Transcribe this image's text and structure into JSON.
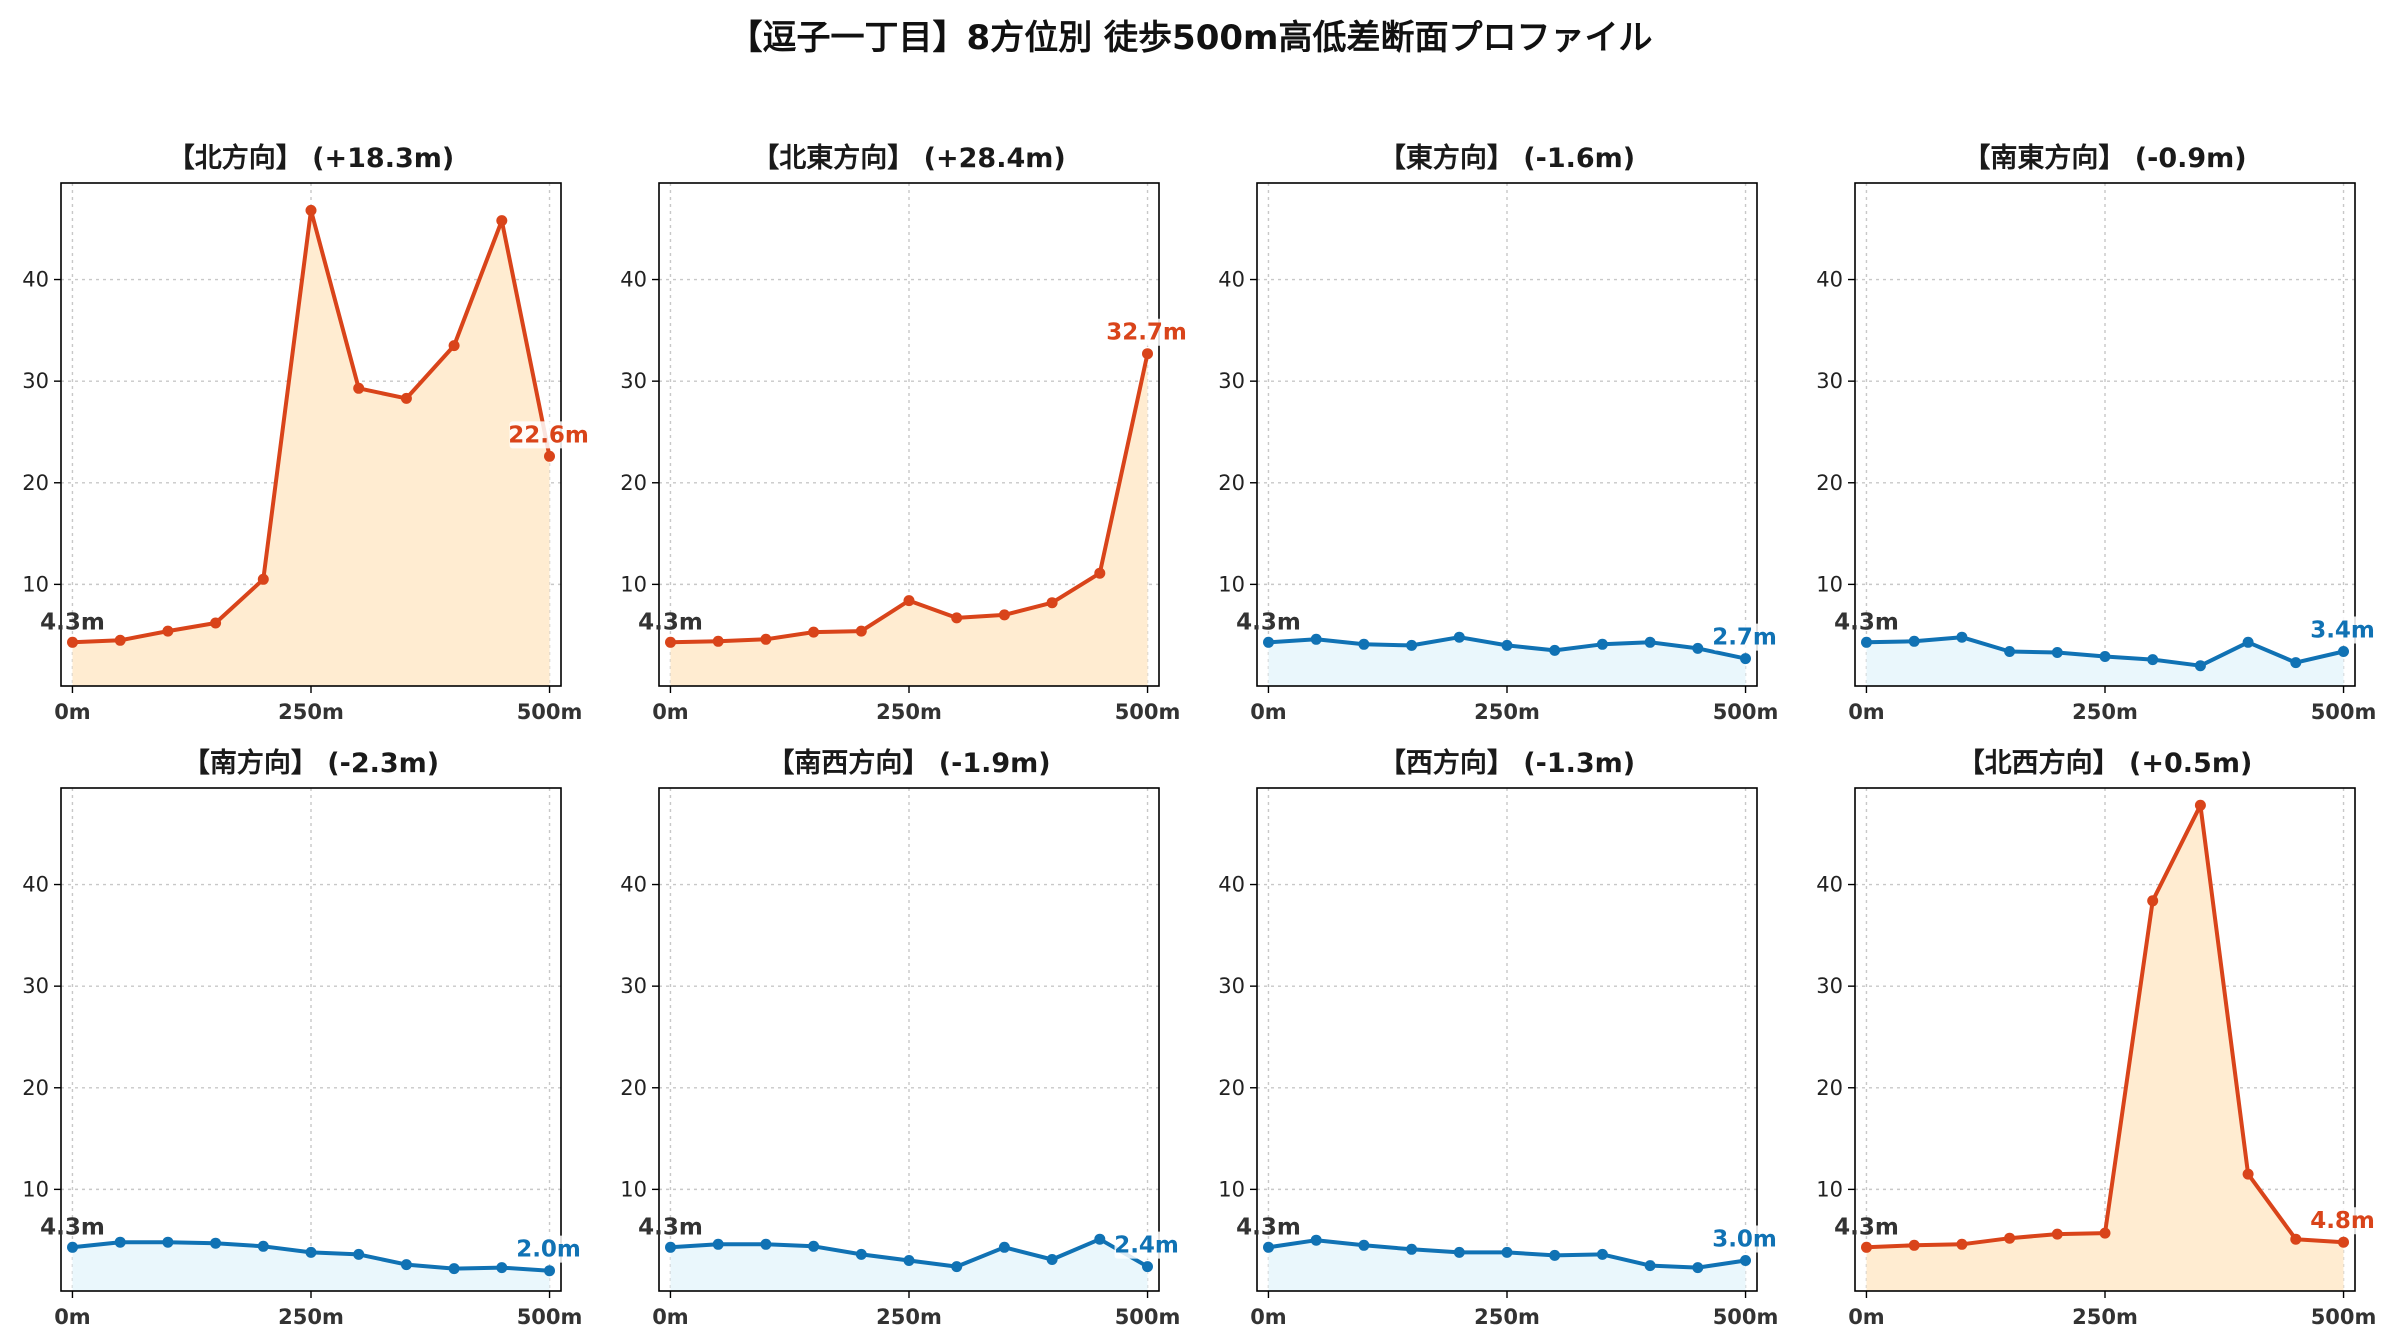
{
  "title": "【逗子一丁目】8方位別 徒歩500m高低差断面プロファイル",
  "colors": {
    "up_line": "#d9441a",
    "up_fill": "#ffecd1",
    "down_line": "#1072b4",
    "down_fill": "#eaf7fc"
  },
  "chart_data": [
    {
      "type": "area",
      "title": "【北方向】 (+18.3m)",
      "trend": "up",
      "x": [
        0,
        50,
        100,
        150,
        200,
        250,
        300,
        350,
        400,
        450,
        500
      ],
      "series": [
        {
          "values": [
            4.3,
            4.5,
            5.4,
            6.2,
            10.5,
            46.8,
            29.3,
            28.3,
            33.5,
            45.8,
            22.6
          ]
        }
      ],
      "xticks": [
        "0m",
        "250m",
        "500m"
      ],
      "yticks": [
        "10",
        "20",
        "30",
        "40"
      ],
      "ylim": [
        0,
        49.5
      ],
      "xlim": [
        -12,
        512
      ],
      "grid": true,
      "annotations": {
        "start": "4.3m",
        "end": "22.6m"
      }
    },
    {
      "type": "area",
      "title": "【北東方向】 (+28.4m)",
      "trend": "up",
      "x": [
        0,
        50,
        100,
        150,
        200,
        250,
        300,
        350,
        400,
        450,
        500
      ],
      "series": [
        {
          "values": [
            4.3,
            4.4,
            4.6,
            5.3,
            5.4,
            8.4,
            6.7,
            7.0,
            8.2,
            11.1,
            32.7
          ]
        }
      ],
      "xticks": [
        "0m",
        "250m",
        "500m"
      ],
      "yticks": [
        "10",
        "20",
        "30",
        "40"
      ],
      "ylim": [
        0,
        49.5
      ],
      "xlim": [
        -12,
        512
      ],
      "grid": true,
      "annotations": {
        "start": "4.3m",
        "end": "32.7m"
      }
    },
    {
      "type": "area",
      "title": "【東方向】 (-1.6m)",
      "trend": "down",
      "x": [
        0,
        50,
        100,
        150,
        200,
        250,
        300,
        350,
        400,
        450,
        500
      ],
      "series": [
        {
          "values": [
            4.3,
            4.6,
            4.1,
            4.0,
            4.8,
            4.0,
            3.5,
            4.1,
            4.3,
            3.7,
            2.7
          ]
        }
      ],
      "xticks": [
        "0m",
        "250m",
        "500m"
      ],
      "yticks": [
        "10",
        "20",
        "30",
        "40"
      ],
      "ylim": [
        0,
        49.5
      ],
      "xlim": [
        -12,
        512
      ],
      "grid": true,
      "annotations": {
        "start": "4.3m",
        "end": "2.7m"
      }
    },
    {
      "type": "area",
      "title": "【南東方向】 (-0.9m)",
      "trend": "down",
      "x": [
        0,
        50,
        100,
        150,
        200,
        250,
        300,
        350,
        400,
        450,
        500
      ],
      "series": [
        {
          "values": [
            4.3,
            4.4,
            4.8,
            3.4,
            3.3,
            2.9,
            2.6,
            2.0,
            4.3,
            2.3,
            3.4
          ]
        }
      ],
      "xticks": [
        "0m",
        "250m",
        "500m"
      ],
      "yticks": [
        "10",
        "20",
        "30",
        "40"
      ],
      "ylim": [
        0,
        49.5
      ],
      "xlim": [
        -12,
        512
      ],
      "grid": true,
      "annotations": {
        "start": "4.3m",
        "end": "3.4m"
      }
    },
    {
      "type": "area",
      "title": "【南方向】 (-2.3m)",
      "trend": "down",
      "x": [
        0,
        50,
        100,
        150,
        200,
        250,
        300,
        350,
        400,
        450,
        500
      ],
      "series": [
        {
          "values": [
            4.3,
            4.8,
            4.8,
            4.7,
            4.4,
            3.8,
            3.6,
            2.6,
            2.2,
            2.3,
            2.0
          ]
        }
      ],
      "xticks": [
        "0m",
        "250m",
        "500m"
      ],
      "yticks": [
        "10",
        "20",
        "30",
        "40"
      ],
      "ylim": [
        0,
        49.5
      ],
      "xlim": [
        -12,
        512
      ],
      "grid": true,
      "annotations": {
        "start": "4.3m",
        "end": "2.0m"
      }
    },
    {
      "type": "area",
      "title": "【南西方向】 (-1.9m)",
      "trend": "down",
      "x": [
        0,
        50,
        100,
        150,
        200,
        250,
        300,
        350,
        400,
        450,
        500
      ],
      "series": [
        {
          "values": [
            4.3,
            4.6,
            4.6,
            4.4,
            3.6,
            3.0,
            2.4,
            4.3,
            3.1,
            5.1,
            2.4
          ]
        }
      ],
      "xticks": [
        "0m",
        "250m",
        "500m"
      ],
      "yticks": [
        "10",
        "20",
        "30",
        "40"
      ],
      "ylim": [
        0,
        49.5
      ],
      "xlim": [
        -12,
        512
      ],
      "grid": true,
      "annotations": {
        "start": "4.3m",
        "end": "2.4m"
      }
    },
    {
      "type": "area",
      "title": "【西方向】 (-1.3m)",
      "trend": "down",
      "x": [
        0,
        50,
        100,
        150,
        200,
        250,
        300,
        350,
        400,
        450,
        500
      ],
      "series": [
        {
          "values": [
            4.3,
            5.0,
            4.5,
            4.1,
            3.8,
            3.8,
            3.5,
            3.6,
            2.5,
            2.3,
            3.0
          ]
        }
      ],
      "xticks": [
        "0m",
        "250m",
        "500m"
      ],
      "yticks": [
        "10",
        "20",
        "30",
        "40"
      ],
      "ylim": [
        0,
        49.5
      ],
      "xlim": [
        -12,
        512
      ],
      "grid": true,
      "annotations": {
        "start": "4.3m",
        "end": "3.0m"
      }
    },
    {
      "type": "area",
      "title": "【北西方向】 (+0.5m)",
      "trend": "up",
      "x": [
        0,
        50,
        100,
        150,
        200,
        250,
        300,
        350,
        400,
        450,
        500
      ],
      "series": [
        {
          "values": [
            4.3,
            4.5,
            4.6,
            5.2,
            5.6,
            5.7,
            38.4,
            47.8,
            11.5,
            5.1,
            4.8
          ]
        }
      ],
      "xticks": [
        "0m",
        "250m",
        "500m"
      ],
      "yticks": [
        "10",
        "20",
        "30",
        "40"
      ],
      "ylim": [
        0,
        49.5
      ],
      "xlim": [
        -12,
        512
      ],
      "grid": true,
      "annotations": {
        "start": "4.3m",
        "end": "4.8m"
      }
    }
  ]
}
